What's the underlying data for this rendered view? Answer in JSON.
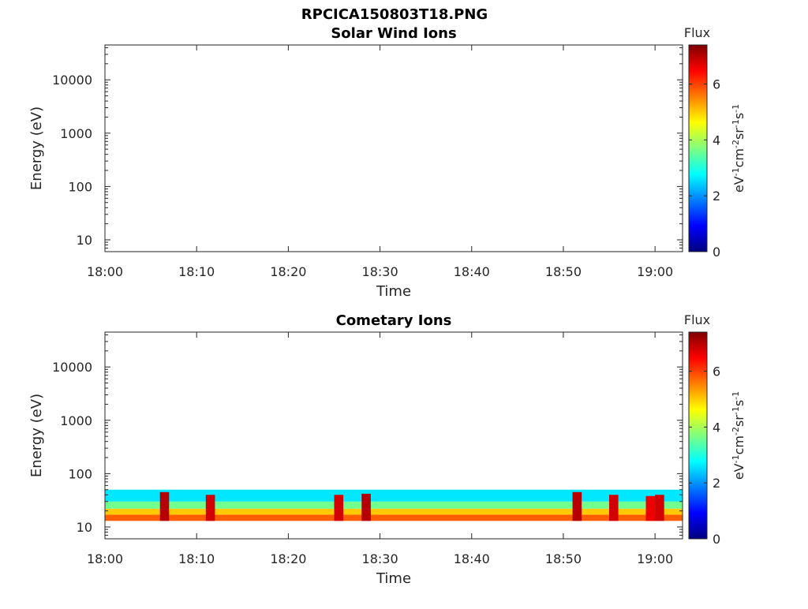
{
  "figure_title": "RPCICA150803T18.PNG",
  "colors": {
    "colormap": [
      "#00007f",
      "#0000ff",
      "#007fff",
      "#00ffff",
      "#7fff7f",
      "#ffff00",
      "#ff7f00",
      "#ff0000",
      "#7f0000"
    ],
    "axis": "#262626",
    "background": "#ffffff"
  },
  "chart_data": [
    {
      "type": "heatmap",
      "title": "Solar Wind Ions",
      "xlabel": "Time",
      "ylabel": "Energy (eV)",
      "x_ticks": [
        "18:00",
        "18:10",
        "18:20",
        "18:30",
        "18:40",
        "18:50",
        "19:00"
      ],
      "xlim": [
        "18:00",
        "19:03"
      ],
      "y_scale": "log",
      "y_ticks": [
        "10",
        "100",
        "1000",
        "10000"
      ],
      "ylim": [
        6,
        45000
      ],
      "colorbar": {
        "title": "Flux",
        "label": "eV-1cm-2sr-1s-1",
        "ticks": [
          "0",
          "2",
          "4",
          "6"
        ],
        "range": [
          0,
          7.4
        ]
      },
      "flux_observations": []
    },
    {
      "type": "heatmap",
      "title": "Cometary Ions",
      "xlabel": "Time",
      "ylabel": "Energy (eV)",
      "x_ticks": [
        "18:00",
        "18:10",
        "18:20",
        "18:30",
        "18:40",
        "18:50",
        "19:00"
      ],
      "xlim": [
        "18:00",
        "19:03"
      ],
      "y_scale": "log",
      "y_ticks": [
        "10",
        "100",
        "1000",
        "10000"
      ],
      "ylim": [
        6,
        45000
      ],
      "colorbar": {
        "title": "Flux",
        "label": "eV-1cm-2sr-1s-1",
        "ticks": [
          "0",
          "2",
          "4",
          "6"
        ],
        "range": [
          0,
          7.4
        ]
      },
      "flux_observations": [
        {
          "time_range": [
            "18:00",
            "19:03"
          ],
          "energy_range_eV": [
            13,
            17
          ],
          "flux": 5.8
        },
        {
          "time_range": [
            "18:00",
            "19:03"
          ],
          "energy_range_eV": [
            17,
            22
          ],
          "flux": 5.0
        },
        {
          "time_range": [
            "18:00",
            "19:03"
          ],
          "energy_range_eV": [
            22,
            30
          ],
          "flux": 3.6
        },
        {
          "time_range": [
            "18:00",
            "19:03"
          ],
          "energy_range_eV": [
            30,
            50
          ],
          "flux": 2.6
        },
        {
          "time_range": [
            "18:06",
            "18:07"
          ],
          "energy_range_eV": [
            13,
            45
          ],
          "flux": 7.0
        },
        {
          "time_range": [
            "18:11",
            "18:12"
          ],
          "energy_range_eV": [
            13,
            40
          ],
          "flux": 6.8
        },
        {
          "time_range": [
            "18:25",
            "18:26"
          ],
          "energy_range_eV": [
            13,
            40
          ],
          "flux": 6.8
        },
        {
          "time_range": [
            "18:28",
            "18:29"
          ],
          "energy_range_eV": [
            13,
            42
          ],
          "flux": 7.0
        },
        {
          "time_range": [
            "18:51",
            "18:52"
          ],
          "energy_range_eV": [
            13,
            45
          ],
          "flux": 7.0
        },
        {
          "time_range": [
            "18:55",
            "18:56"
          ],
          "energy_range_eV": [
            13,
            40
          ],
          "flux": 6.8
        },
        {
          "time_range": [
            "18:59",
            "19:00"
          ],
          "energy_range_eV": [
            13,
            38
          ],
          "flux": 6.6
        },
        {
          "time_range": [
            "19:00",
            "19:01"
          ],
          "energy_range_eV": [
            13,
            40
          ],
          "flux": 6.8
        }
      ]
    }
  ]
}
